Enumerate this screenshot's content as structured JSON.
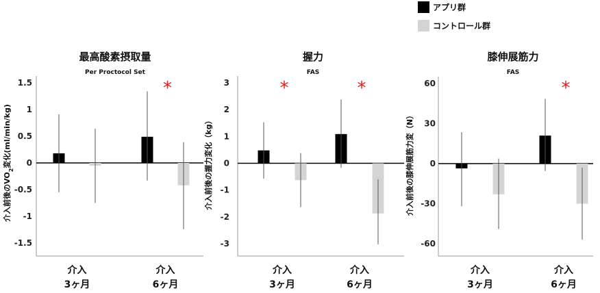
{
  "legend": [
    {
      "label": "アプリ群",
      "color": "#000000"
    },
    {
      "label": "コントロール群",
      "color": "#d4d4d4"
    }
  ],
  "chart_data": [
    {
      "type": "bar",
      "title": "最高酸素摂取量",
      "subtitle": "Per Proctocol Set",
      "ylabel_parts": [
        "介入前後のVO",
        "2",
        "変化(ml/min/kg)"
      ],
      "ylim": [
        -1.5,
        1.5
      ],
      "yticks": [
        -1.5,
        -1,
        -0.5,
        0,
        0.5,
        1,
        1.5
      ],
      "ytick_labels": [
        "-1.5",
        "-1",
        "-0.5",
        "0",
        "0.5",
        "1",
        "1.5"
      ],
      "categories": [
        [
          "介入",
          "3ヶ月"
        ],
        [
          "介入",
          "6ヶ月"
        ]
      ],
      "series": [
        {
          "name": "アプリ群",
          "color": "#000000",
          "values": [
            0.18,
            0.49
          ],
          "err_low": [
            -0.55,
            -0.33
          ],
          "err_high": [
            0.91,
            1.34
          ]
        },
        {
          "name": "コントロール群",
          "color": "#d4d4d4",
          "values": [
            -0.05,
            -0.42
          ],
          "err_low": [
            -0.75,
            -1.24
          ],
          "err_high": [
            0.64,
            0.39
          ]
        }
      ],
      "significance": [
        {
          "category": 1,
          "symbol": "*"
        }
      ]
    },
    {
      "type": "bar",
      "title": "握力",
      "subtitle": "FAS",
      "ylabel_parts": [
        "介入前後の握力変化（kg）"
      ],
      "ylim": [
        -3,
        3
      ],
      "yticks": [
        -3,
        -2,
        -1,
        0,
        1,
        2,
        3
      ],
      "ytick_labels": [
        "-3",
        "-2",
        "-1",
        "0",
        "1",
        "2",
        "3"
      ],
      "categories": [
        [
          "介入",
          "3ヶ月"
        ],
        [
          "介入",
          "6ヶ月"
        ]
      ],
      "series": [
        {
          "name": "アプリ群",
          "color": "#000000",
          "values": [
            0.48,
            1.09
          ],
          "err_low": [
            -0.57,
            -0.17
          ],
          "err_high": [
            1.53,
            2.38
          ]
        },
        {
          "name": "コントロール群",
          "color": "#d4d4d4",
          "values": [
            -0.63,
            -1.87
          ],
          "err_low": [
            -1.64,
            -3.03
          ],
          "err_high": [
            0.38,
            -0.6
          ]
        }
      ],
      "significance": [
        {
          "category": 0,
          "symbol": "*"
        },
        {
          "category": 1,
          "symbol": "*"
        }
      ]
    },
    {
      "type": "bar",
      "title": "膝伸展筋力",
      "subtitle": "FAS",
      "ylabel_parts": [
        "介入前後の膝伸展筋力変（N）"
      ],
      "ylim": [
        -60,
        60
      ],
      "yticks": [
        -60,
        -30,
        0,
        30,
        60
      ],
      "ytick_labels": [
        "-60",
        "-30",
        "0",
        "30",
        "60"
      ],
      "categories": [
        [
          "介入",
          "3ヶ月"
        ],
        [
          "介入",
          "6ヶ月"
        ]
      ],
      "series": [
        {
          "name": "アプリ群",
          "color": "#000000",
          "values": [
            -3.6,
            21.0
          ],
          "err_low": [
            -32.0,
            -5.5
          ],
          "err_high": [
            23.5,
            48.5
          ]
        },
        {
          "name": "コントロール群",
          "color": "#d4d4d4",
          "values": [
            -23.0,
            -30.0
          ],
          "err_low": [
            -49.0,
            -57.0
          ],
          "err_high": [
            3.8,
            -3.0
          ]
        }
      ],
      "significance": [
        {
          "category": 1,
          "symbol": "*"
        }
      ]
    }
  ]
}
